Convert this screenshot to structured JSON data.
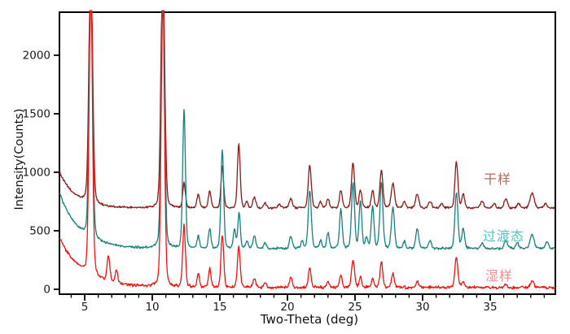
{
  "figure": {
    "background": "#ffffff",
    "axis_color": "#000000",
    "tick_label_color": "#1a1a1a"
  },
  "chart_data": {
    "type": "line",
    "title": "",
    "xlabel": "Two-Theta (deg)",
    "ylabel": "Intensity(Counts)",
    "xlim": [
      3.13,
      39.82
    ],
    "ylim": [
      -42,
      2368
    ],
    "x_major_ticks": [
      5,
      10,
      15,
      20,
      25,
      30,
      35
    ],
    "x_minor_step": 1,
    "y_major_ticks": [
      0,
      500,
      1000,
      1500,
      2000
    ],
    "grid": false,
    "legend_position": "right-inside",
    "series_note": "peaks are [two_theta_deg, peak_height_counts_above_baseline, peak_sigma_deg]; tall peaks at 5.45 and 10.78 are clipped by the plot top border",
    "series": [
      {
        "name": "dry-sample",
        "label": "干样",
        "color": "#8B1A17",
        "label_color": "#B26A60",
        "baseline": 693,
        "bg_amp": 310,
        "bg_tau": 1.15,
        "noise": 5.5,
        "peaks": [
          [
            5.45,
            2200,
            0.13
          ],
          [
            10.78,
            2200,
            0.13
          ],
          [
            12.35,
            210,
            0.1
          ],
          [
            13.4,
            115,
            0.1
          ],
          [
            14.25,
            150,
            0.1
          ],
          [
            15.18,
            350,
            0.1
          ],
          [
            16.4,
            545,
            0.1
          ],
          [
            17.0,
            55,
            0.09
          ],
          [
            17.55,
            95,
            0.11
          ],
          [
            18.35,
            45,
            0.1
          ],
          [
            19.4,
            35,
            0.1
          ],
          [
            20.25,
            85,
            0.11
          ],
          [
            21.65,
            370,
            0.11
          ],
          [
            22.45,
            50,
            0.1
          ],
          [
            23.0,
            80,
            0.1
          ],
          [
            23.95,
            150,
            0.1
          ],
          [
            24.85,
            390,
            0.11
          ],
          [
            25.4,
            150,
            0.1
          ],
          [
            26.3,
            150,
            0.1
          ],
          [
            26.95,
            320,
            0.11
          ],
          [
            27.8,
            210,
            0.12
          ],
          [
            28.65,
            50,
            0.1
          ],
          [
            29.6,
            120,
            0.12
          ],
          [
            30.55,
            60,
            0.11
          ],
          [
            31.4,
            40,
            0.11
          ],
          [
            32.5,
            395,
            0.11
          ],
          [
            33.0,
            120,
            0.1
          ],
          [
            34.4,
            60,
            0.11
          ],
          [
            35.3,
            40,
            0.1
          ],
          [
            36.15,
            80,
            0.12
          ],
          [
            37.1,
            40,
            0.1
          ],
          [
            38.1,
            130,
            0.15
          ],
          [
            39.1,
            45,
            0.1
          ]
        ]
      },
      {
        "name": "transition-state",
        "label": "过渡态",
        "color": "#18807E",
        "label_color": "#52C3C1",
        "baseline": 348,
        "bg_amp": 480,
        "bg_tau": 1.4,
        "noise": 6.5,
        "peaks": [
          [
            5.45,
            2450,
            0.12
          ],
          [
            10.78,
            2450,
            0.12
          ],
          [
            12.35,
            1185,
            0.1
          ],
          [
            13.4,
            100,
            0.09
          ],
          [
            14.25,
            170,
            0.09
          ],
          [
            15.18,
            840,
            0.1
          ],
          [
            16.08,
            155,
            0.09
          ],
          [
            16.42,
            300,
            0.09
          ],
          [
            17.0,
            60,
            0.09
          ],
          [
            17.55,
            110,
            0.1
          ],
          [
            18.35,
            50,
            0.1
          ],
          [
            20.25,
            105,
            0.1
          ],
          [
            21.1,
            60,
            0.09
          ],
          [
            21.65,
            500,
            0.11
          ],
          [
            22.45,
            70,
            0.09
          ],
          [
            23.0,
            135,
            0.09
          ],
          [
            23.95,
            330,
            0.1
          ],
          [
            24.85,
            560,
            0.11
          ],
          [
            25.4,
            400,
            0.1
          ],
          [
            25.85,
            90,
            0.09
          ],
          [
            26.3,
            350,
            0.1
          ],
          [
            26.95,
            560,
            0.11
          ],
          [
            27.8,
            350,
            0.11
          ],
          [
            28.65,
            60,
            0.09
          ],
          [
            29.6,
            165,
            0.11
          ],
          [
            30.55,
            70,
            0.1
          ],
          [
            32.5,
            480,
            0.11
          ],
          [
            33.0,
            165,
            0.1
          ],
          [
            34.4,
            50,
            0.1
          ],
          [
            36.15,
            70,
            0.11
          ],
          [
            37.0,
            50,
            0.1
          ],
          [
            38.1,
            125,
            0.14
          ],
          [
            39.2,
            60,
            0.1
          ]
        ]
      },
      {
        "name": "wet-sample",
        "label": "湿样",
        "color": "#F8100D",
        "label_color": "#F09090",
        "baseline": 15,
        "bg_amp": 420,
        "bg_tau": 1.7,
        "noise": 7.5,
        "peaks": [
          [
            5.45,
            2500,
            0.12
          ],
          [
            6.75,
            225,
            0.1
          ],
          [
            7.35,
            115,
            0.09
          ],
          [
            10.78,
            2480,
            0.12
          ],
          [
            12.35,
            530,
            0.1
          ],
          [
            13.4,
            115,
            0.09
          ],
          [
            14.25,
            160,
            0.09
          ],
          [
            15.18,
            445,
            0.1
          ],
          [
            16.4,
            345,
            0.1
          ],
          [
            17.55,
            80,
            0.1
          ],
          [
            18.35,
            40,
            0.09
          ],
          [
            20.25,
            90,
            0.1
          ],
          [
            21.65,
            165,
            0.1
          ],
          [
            23.0,
            55,
            0.09
          ],
          [
            23.95,
            105,
            0.09
          ],
          [
            24.85,
            235,
            0.11
          ],
          [
            25.4,
            90,
            0.09
          ],
          [
            26.3,
            75,
            0.09
          ],
          [
            26.95,
            215,
            0.1
          ],
          [
            27.8,
            120,
            0.1
          ],
          [
            29.6,
            55,
            0.1
          ],
          [
            32.5,
            260,
            0.11
          ],
          [
            33.0,
            45,
            0.09
          ],
          [
            36.15,
            35,
            0.1
          ],
          [
            38.1,
            55,
            0.12
          ]
        ]
      }
    ]
  }
}
